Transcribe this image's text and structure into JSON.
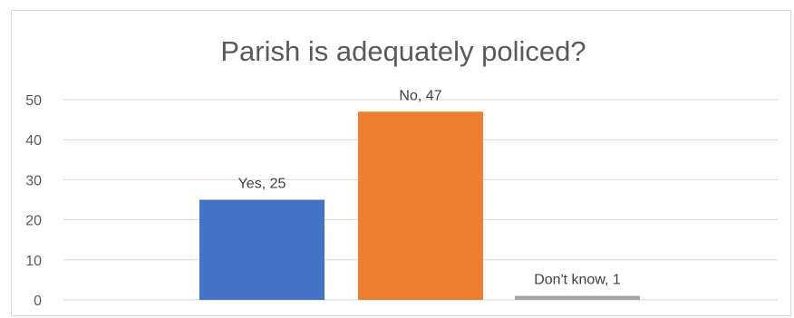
{
  "chart_data": {
    "type": "bar",
    "title": "Parish is adequately policed?",
    "categories": [
      "Yes",
      "No",
      "Don't know"
    ],
    "values": [
      25,
      47,
      1
    ],
    "data_labels": [
      "Yes, 25",
      "No, 47",
      "Don't know, 1"
    ],
    "colors": [
      "#4472C4",
      "#ED7D31",
      "#A5A5A5"
    ],
    "ylim": [
      0,
      50
    ],
    "yticks": [
      0,
      10,
      20,
      30,
      40,
      50
    ],
    "xlabel": "",
    "ylabel": "",
    "grid": true,
    "legend": "none"
  }
}
